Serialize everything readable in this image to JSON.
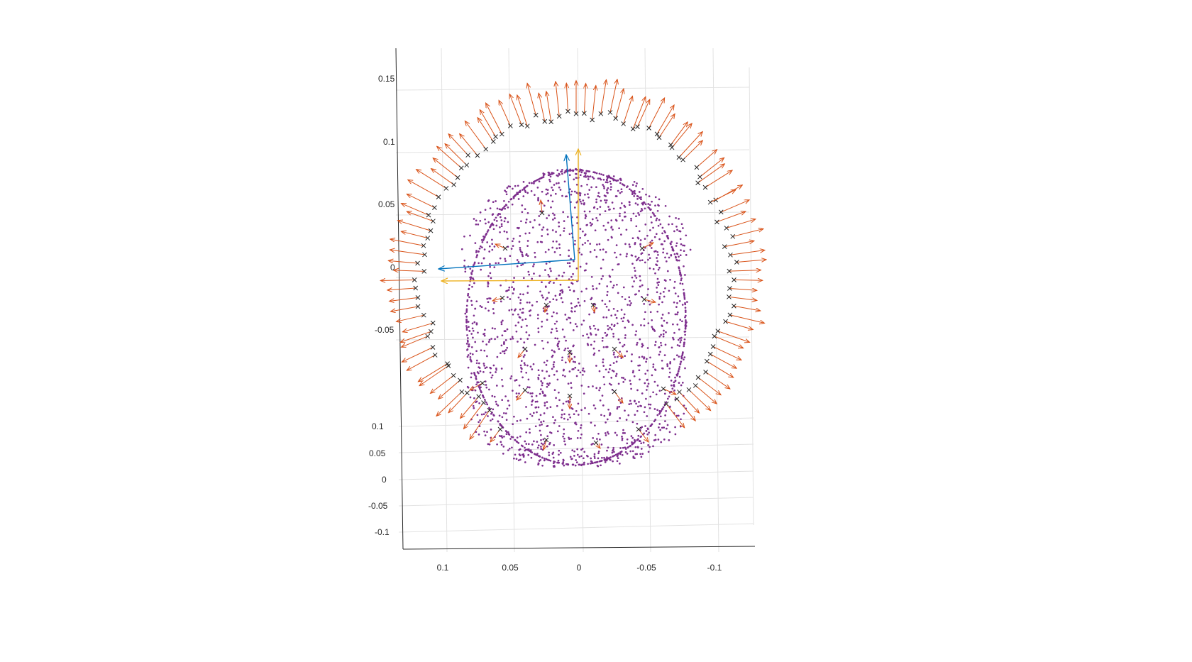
{
  "chart_data": {
    "type": "scatter",
    "title": "",
    "xlabel": "",
    "ylabel": "",
    "zlabel": "",
    "grid": true,
    "colors": {
      "points": "#7e2f8e",
      "arrows": "#d95319",
      "markers": "#262626",
      "frame_blue": "#0072bd",
      "frame_yellow": "#edb120"
    },
    "x_axis": {
      "ticks": [
        "0.1",
        "0.05",
        "0",
        "-0.05",
        "-0.1"
      ],
      "lim": [
        0.12,
        -0.13
      ]
    },
    "y_axis": {
      "ticks": [
        "0.15",
        "0.1",
        "0.05",
        "0",
        "-0.05"
      ],
      "lim": [
        -0.13,
        0.15
      ]
    },
    "z_axis": {
      "ticks": [
        "0.1",
        "0.05",
        "0",
        "-0.05",
        "-0.1"
      ]
    },
    "series": [
      {
        "kind": "point-cloud",
        "description_shape": "head",
        "width_range": [
          -0.085,
          0.085
        ],
        "height_range": [
          -0.13,
          0.08
        ],
        "count": 1800
      },
      {
        "kind": "x-markers-with-normal-arrows",
        "count": 96
      },
      {
        "kind": "coordinate-frame",
        "axes": [
          {
            "color": "frame_blue",
            "dx": 0.099,
            "dy": 0.0,
            "ux": 0.003,
            "uy": 0.079
          },
          {
            "color": "frame_yellow",
            "dx": 0.099,
            "dy": -0.016,
            "ux": 0.0,
            "uy": 0.095
          }
        ]
      }
    ]
  }
}
